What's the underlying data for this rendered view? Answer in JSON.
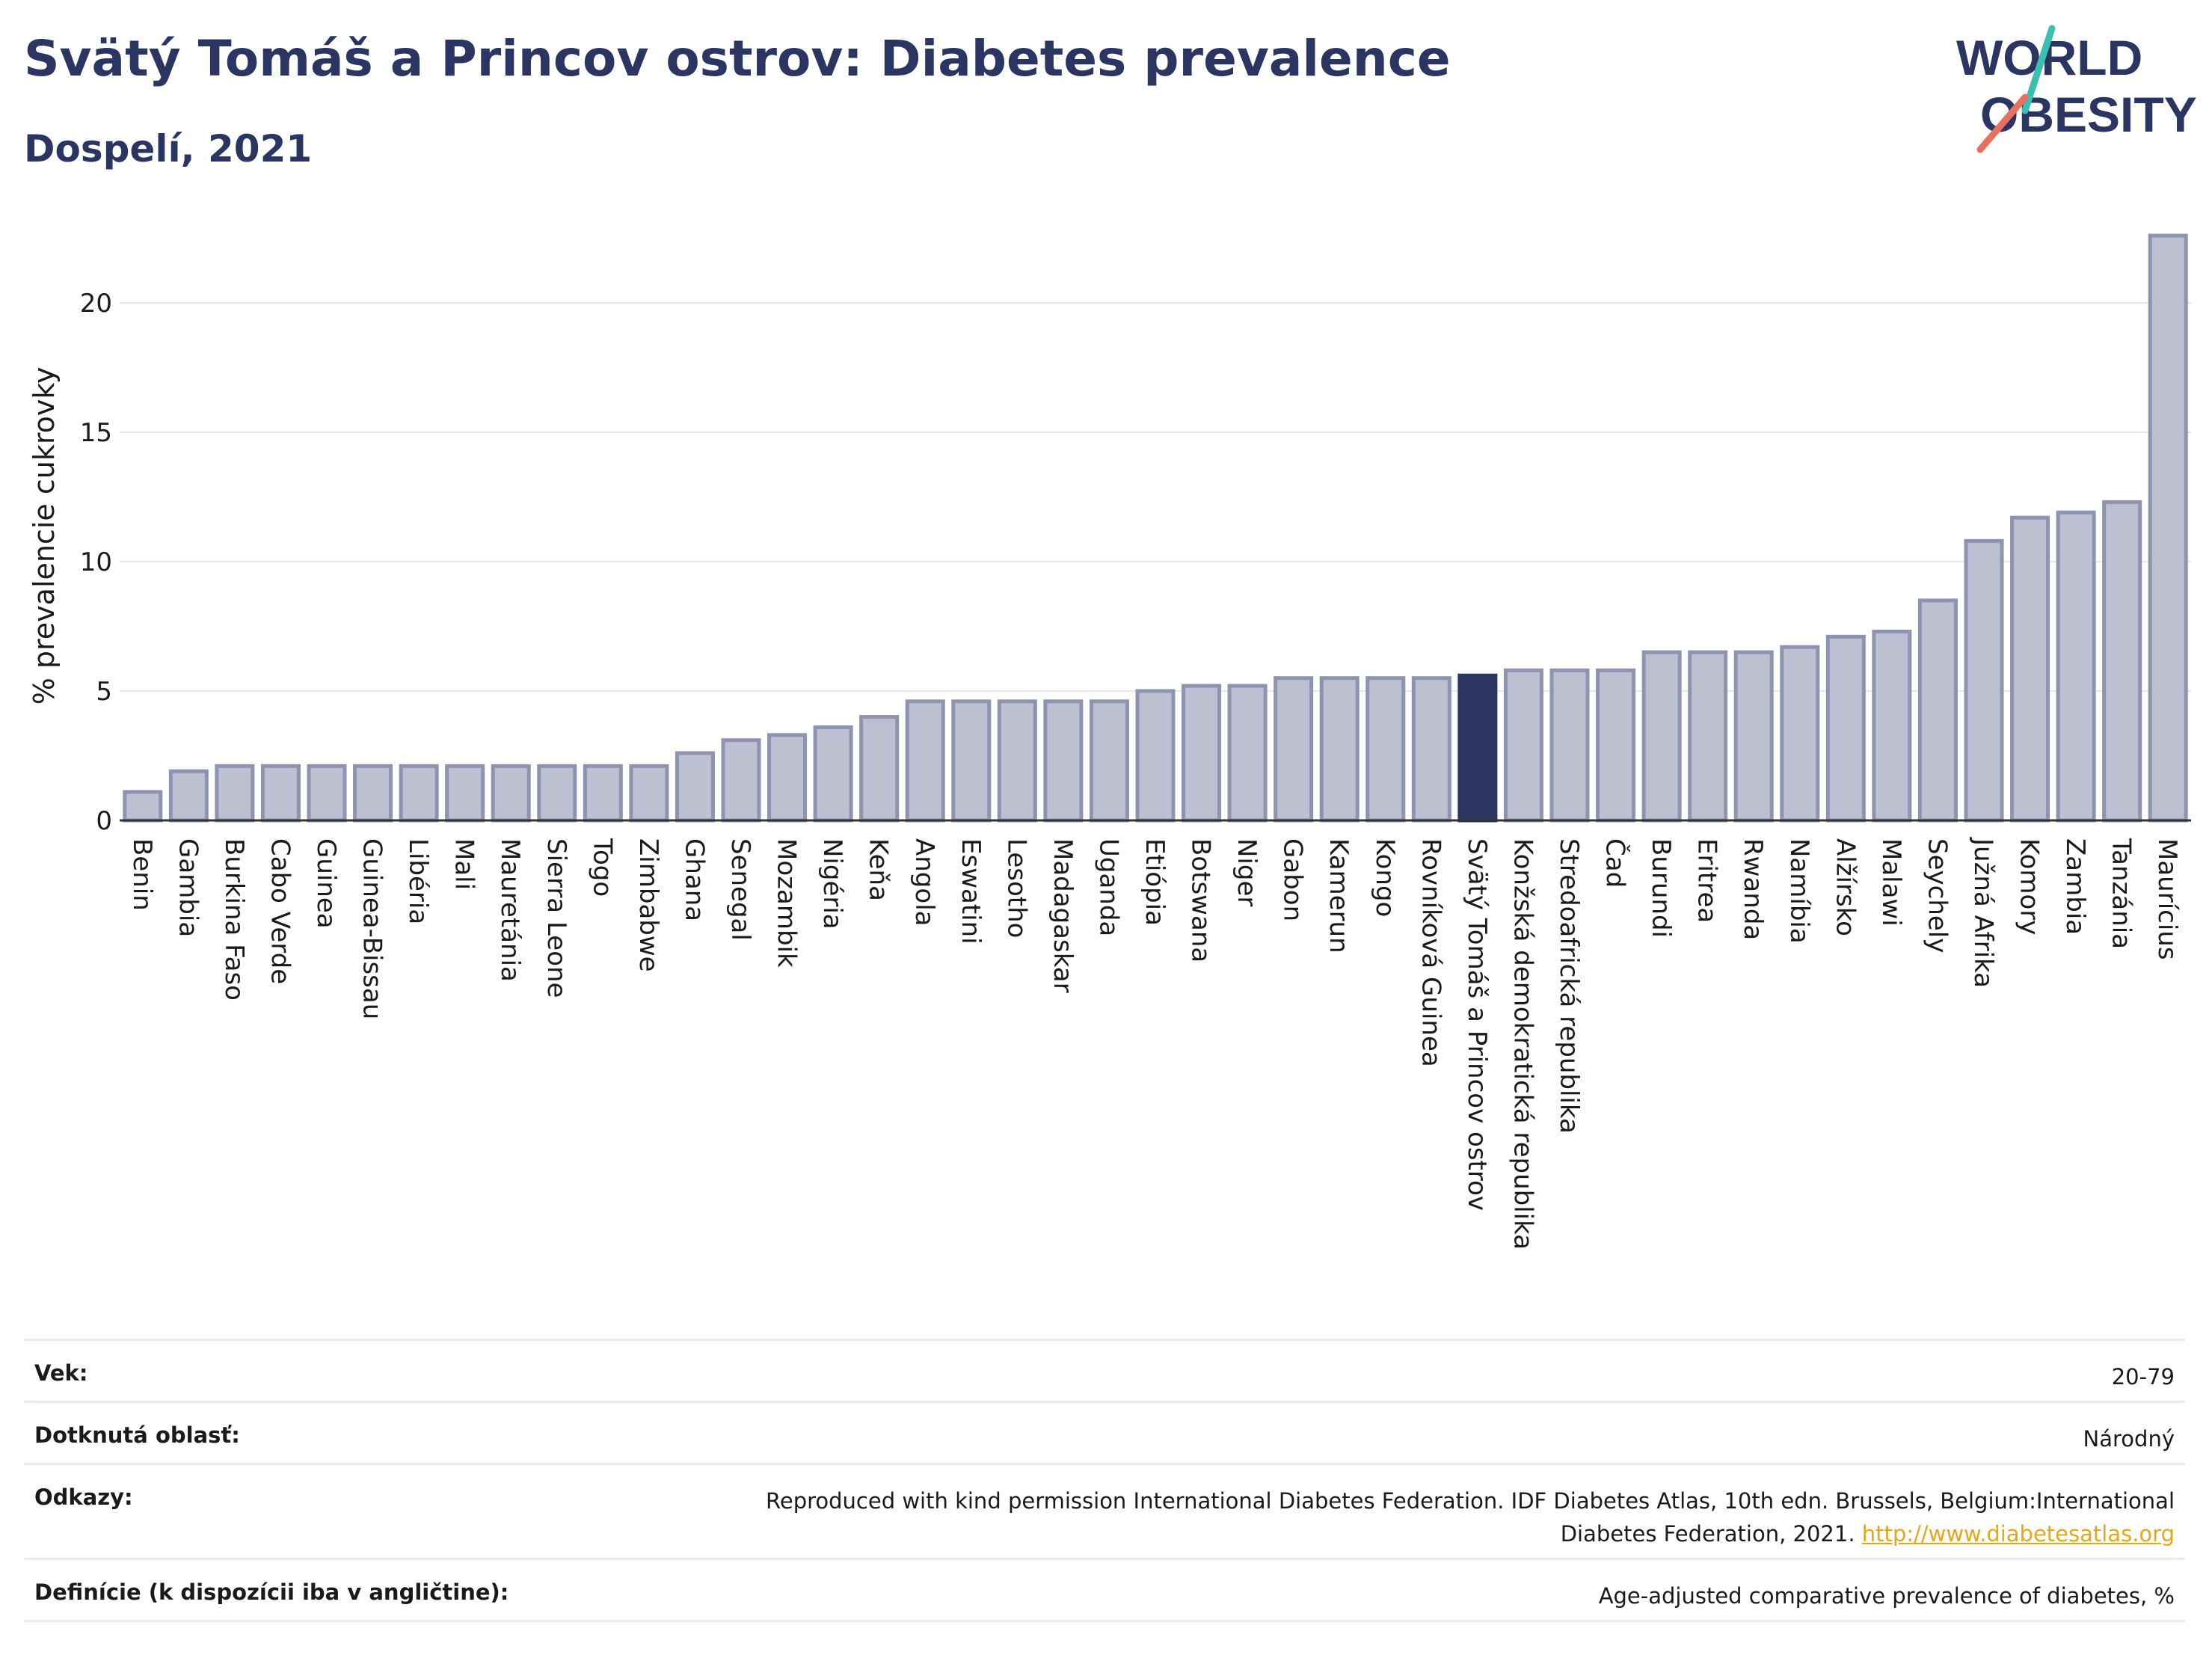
{
  "header": {
    "title": "Svätý Tomáš a Princov ostrov: Diabetes prevalence",
    "subtitle": "Dospelí, 2021",
    "logo_line1": "WORLD",
    "logo_line2": "OBESITY"
  },
  "colors": {
    "bar": "#bcc0d0",
    "bar_edge": "#8d93b0",
    "highlight": "#2b3561",
    "logo_teal": "#3bbfb0",
    "logo_coral": "#e8705f"
  },
  "chart_data": {
    "type": "bar",
    "title": "Svätý Tomáš a Princov ostrov: Diabetes prevalence",
    "subtitle": "Dospelí, 2021",
    "ylabel": "% prevalencie cukrovky",
    "ylim": [
      0,
      23
    ],
    "yticks": [
      0,
      5,
      10,
      15,
      20
    ],
    "grid": true,
    "highlight": "Svätý Tomáš a Princov ostrov",
    "categories": [
      "Benin",
      "Gambia",
      "Burkina Faso",
      "Cabo Verde",
      "Guinea",
      "Guinea-Bissau",
      "Libéria",
      "Mali",
      "Mauretánia",
      "Sierra Leone",
      "Togo",
      "Zimbabwe",
      "Ghana",
      "Senegal",
      "Mozambik",
      "Nigéria",
      "Keňa",
      "Angola",
      "Eswatini",
      "Lesotho",
      "Madagaskar",
      "Uganda",
      "Etiópia",
      "Botswana",
      "Niger",
      "Gabon",
      "Kamerun",
      "Kongo",
      "Rovníková Guinea",
      "Svätý Tomáš a Princov ostrov",
      "Konžská demokratická republika",
      "Stredoafrická republika",
      "Čad",
      "Burundi",
      "Eritrea",
      "Rwanda",
      "Namíbia",
      "Alžírsko",
      "Malawi",
      "Seychely",
      "Južná Afrika",
      "Komory",
      "Zambia",
      "Tanzánia",
      "Maurícius"
    ],
    "values": [
      1.1,
      1.9,
      2.1,
      2.1,
      2.1,
      2.1,
      2.1,
      2.1,
      2.1,
      2.1,
      2.1,
      2.1,
      2.6,
      3.1,
      3.3,
      3.6,
      4.0,
      4.6,
      4.6,
      4.6,
      4.6,
      4.6,
      5.0,
      5.2,
      5.2,
      5.5,
      5.5,
      5.5,
      5.5,
      5.6,
      5.8,
      5.8,
      5.8,
      6.5,
      6.5,
      6.5,
      6.7,
      7.1,
      7.3,
      8.5,
      10.8,
      11.7,
      11.9,
      12.3,
      22.6
    ]
  },
  "info": {
    "rows": [
      {
        "label": "Vek:",
        "value": "20-79"
      },
      {
        "label": "Dotknutá oblasť:",
        "value": "Národný"
      },
      {
        "label": "Odkazy:",
        "value_line1": "Reproduced with kind permission International Diabetes Federation.  IDF Diabetes Atlas, 10th edn. Brussels, Belgium:International",
        "value_line2": "Diabetes Federation, 2021.",
        "link": "http://www.diabetesatlas.org"
      },
      {
        "label": "Definície (k dispozícii iba v angličtine):",
        "value": "Age-adjusted comparative prevalence of diabetes, %"
      }
    ]
  }
}
